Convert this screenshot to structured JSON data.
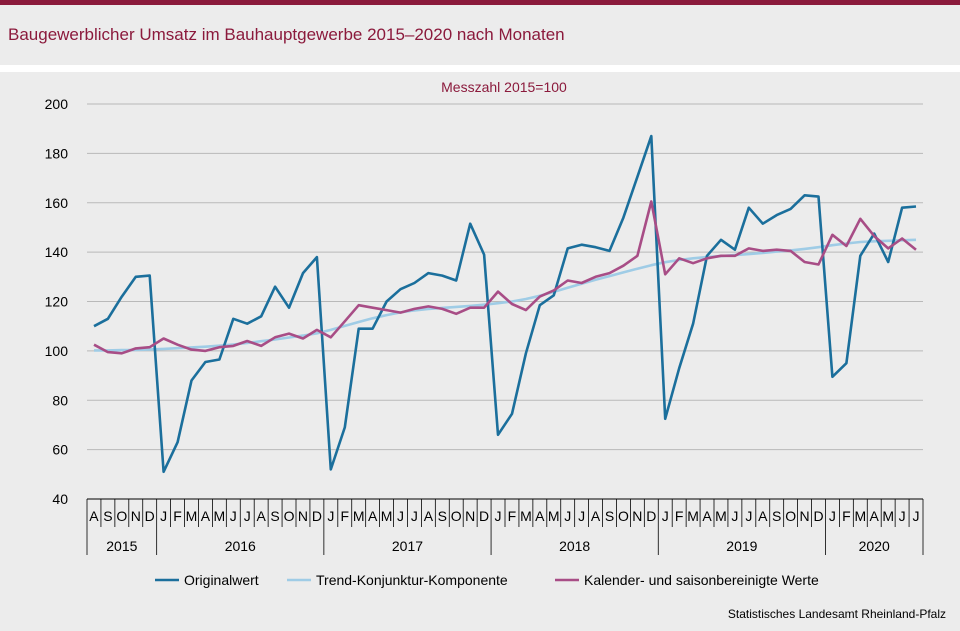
{
  "header": {
    "title": "Baugewerblicher Umsatz im Bauhauptgewerbe 2015–2020 nach Monaten"
  },
  "footer": {
    "source": "Statistisches Landesamt Rheinland-Pfalz"
  },
  "colors": {
    "accent": "#8b1a3c",
    "original": "#1b6f9c",
    "trend": "#9fcce6",
    "seasonal": "#a84d86",
    "background": "#ececec"
  },
  "chart_data": {
    "type": "line",
    "subtitle": "Messzahl 2015=100",
    "ylim": [
      40,
      200
    ],
    "yticks": [
      40,
      60,
      80,
      100,
      120,
      140,
      160,
      180,
      200
    ],
    "grid": true,
    "legend_position": "bottom",
    "month_labels": [
      "A",
      "S",
      "O",
      "N",
      "D",
      "J",
      "F",
      "M",
      "A",
      "M",
      "J",
      "J",
      "A",
      "S",
      "O",
      "N",
      "D",
      "J",
      "F",
      "M",
      "A",
      "M",
      "J",
      "J",
      "A",
      "S",
      "O",
      "N",
      "D",
      "J",
      "F",
      "M",
      "A",
      "M",
      "J",
      "J",
      "A",
      "S",
      "O",
      "N",
      "D",
      "J",
      "F",
      "M",
      "A",
      "M",
      "J",
      "J",
      "A",
      "S",
      "O",
      "N",
      "D",
      "J",
      "F",
      "M",
      "A",
      "M",
      "J",
      "J"
    ],
    "years": [
      {
        "label": "2015",
        "months": 5
      },
      {
        "label": "2016",
        "months": 12
      },
      {
        "label": "2017",
        "months": 12
      },
      {
        "label": "2018",
        "months": 12
      },
      {
        "label": "2019",
        "months": 12
      },
      {
        "label": "2020",
        "months": 7
      }
    ],
    "series": [
      {
        "name": "Originalwert",
        "color": "#1b6f9c",
        "values": [
          110,
          113,
          122,
          130,
          130.5,
          51,
          63,
          88,
          95.5,
          96.5,
          113,
          111,
          114,
          126,
          117.5,
          131.5,
          138,
          52,
          69,
          109,
          109,
          120,
          125,
          127.5,
          131.5,
          130.5,
          128.5,
          151.5,
          139,
          66,
          74.5,
          99,
          118.5,
          122.5,
          141.5,
          143,
          142,
          140.5,
          154,
          170.5,
          187,
          72.5,
          93,
          111,
          138.5,
          145,
          141,
          158,
          151.5,
          155,
          157.5,
          163,
          162.5,
          89.5,
          95,
          138.5,
          147.5,
          136,
          158,
          158.5
        ]
      },
      {
        "name": "Trend-Konjunktur-Komponente",
        "color": "#9fcce6",
        "values": [
          100.2,
          100.2,
          100.3,
          100.4,
          100.6,
          100.8,
          101.1,
          101.4,
          101.7,
          102.1,
          102.6,
          103.2,
          103.9,
          104.6,
          105.4,
          106.2,
          107.1,
          108.5,
          110.1,
          111.7,
          113.2,
          114.5,
          115.6,
          116.4,
          117,
          117.4,
          117.8,
          118.2,
          118.7,
          119.3,
          120,
          121,
          122.3,
          123.9,
          125.6,
          127.2,
          128.8,
          130.3,
          131.8,
          133.3,
          134.7,
          135.9,
          136.8,
          137.5,
          138,
          138.4,
          138.8,
          139.2,
          139.7,
          140.2,
          140.7,
          141.3,
          142,
          142.8,
          143.5,
          144.1,
          144.4,
          144.6,
          144.8,
          145
        ]
      },
      {
        "name": "Kalender- und saisonbereinigte Werte",
        "color": "#a84d86",
        "values": [
          102.5,
          99.5,
          99,
          101,
          101.5,
          105,
          102.5,
          100.5,
          100,
          101.5,
          102,
          104,
          102,
          105.5,
          107,
          105,
          108.5,
          105.5,
          112,
          118.5,
          117.5,
          116.5,
          115.5,
          117,
          118,
          117,
          115,
          117.5,
          117.5,
          124,
          119,
          116.5,
          122,
          124.5,
          128.5,
          127.5,
          130,
          131.5,
          134.5,
          138.5,
          160.5,
          131,
          137.5,
          135.5,
          137.5,
          138.5,
          138.5,
          141.5,
          140.5,
          141,
          140.5,
          136,
          135,
          147,
          142.5,
          153.5,
          146.5,
          141.5,
          145.5,
          141
        ]
      }
    ]
  }
}
